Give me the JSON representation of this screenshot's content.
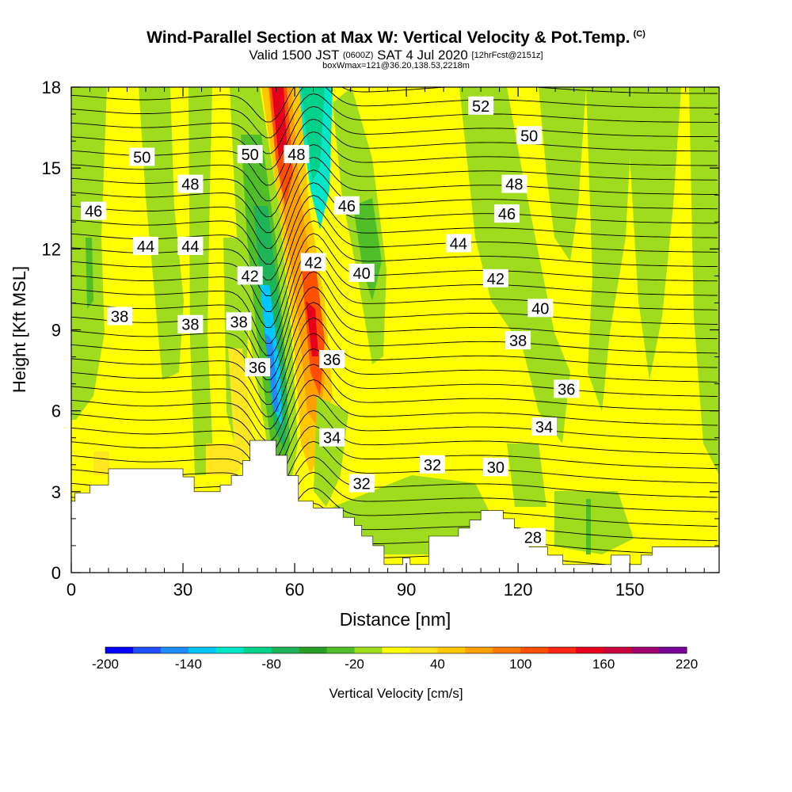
{
  "header": {
    "title": "Wind-Parallel Section at Max W: Vertical Velocity & Pot.Temp.",
    "title_tag": "(C)",
    "valid_prefix": "Valid 1500 JST",
    "valid_utc": "(0600Z)",
    "valid_date": "SAT 4 Jul 2020",
    "forecast": "[12hrFcst@2151z]",
    "box_info": "boxWmax=121@36.20,138.53,2218m"
  },
  "chart_data": {
    "type": "heatmap",
    "title": "Wind-Parallel Section at Max W: Vertical Velocity & Pot.Temp.",
    "xlabel": "Distance [nm]",
    "ylabel": "Height [Kft MSL]",
    "xlim": [
      0,
      174
    ],
    "ylim": [
      0,
      18
    ],
    "x_ticks": [
      0,
      30,
      60,
      90,
      120,
      150
    ],
    "y_ticks": [
      0,
      3,
      6,
      9,
      12,
      15,
      18
    ],
    "colorbar": {
      "label": "Vertical Velocity [cm/s]",
      "ticks": [
        -200,
        -140,
        -80,
        -20,
        40,
        100,
        160,
        220
      ],
      "colors": [
        "#0000ff",
        "#1e50ff",
        "#1e8cff",
        "#00c8ff",
        "#00e6c8",
        "#00d28c",
        "#1eb45a",
        "#28a028",
        "#50be28",
        "#a0dc1e",
        "#ffff00",
        "#ffe61e",
        "#ffc800",
        "#ffa000",
        "#ff7800",
        "#ff5000",
        "#ff2814",
        "#e6001e",
        "#c8003c",
        "#a0006e",
        "#780096"
      ]
    },
    "theta_contour_labels": [
      {
        "value": "52",
        "x": 110,
        "y": 17.3
      },
      {
        "value": "50",
        "x": 19,
        "y": 15.4
      },
      {
        "value": "50",
        "x": 48,
        "y": 15.5
      },
      {
        "value": "48",
        "x": 60.5,
        "y": 15.5
      },
      {
        "value": "50",
        "x": 123,
        "y": 16.2
      },
      {
        "value": "48",
        "x": 32,
        "y": 14.4
      },
      {
        "value": "48",
        "x": 119,
        "y": 14.4
      },
      {
        "value": "46",
        "x": 6,
        "y": 13.4
      },
      {
        "value": "46",
        "x": 74,
        "y": 13.6
      },
      {
        "value": "46",
        "x": 117,
        "y": 13.3
      },
      {
        "value": "44",
        "x": 20,
        "y": 12.1
      },
      {
        "value": "44",
        "x": 32,
        "y": 12.1
      },
      {
        "value": "44",
        "x": 104,
        "y": 12.2
      },
      {
        "value": "42",
        "x": 48,
        "y": 11.0
      },
      {
        "value": "42",
        "x": 65,
        "y": 11.5
      },
      {
        "value": "40",
        "x": 78,
        "y": 11.1
      },
      {
        "value": "42",
        "x": 114,
        "y": 10.9
      },
      {
        "value": "40",
        "x": 126,
        "y": 9.8
      },
      {
        "value": "38",
        "x": 13,
        "y": 9.5
      },
      {
        "value": "38",
        "x": 32,
        "y": 9.2
      },
      {
        "value": "38",
        "x": 45,
        "y": 9.3
      },
      {
        "value": "38",
        "x": 120,
        "y": 8.6
      },
      {
        "value": "36",
        "x": 50,
        "y": 7.6
      },
      {
        "value": "36",
        "x": 70,
        "y": 7.9
      },
      {
        "value": "36",
        "x": 133,
        "y": 6.8
      },
      {
        "value": "34",
        "x": 70,
        "y": 5.0
      },
      {
        "value": "34",
        "x": 127,
        "y": 5.4
      },
      {
        "value": "32",
        "x": 97,
        "y": 4.0
      },
      {
        "value": "30",
        "x": 114,
        "y": 3.9
      },
      {
        "value": "32",
        "x": 78,
        "y": 3.3
      },
      {
        "value": "28",
        "x": 124,
        "y": 1.3
      }
    ]
  }
}
